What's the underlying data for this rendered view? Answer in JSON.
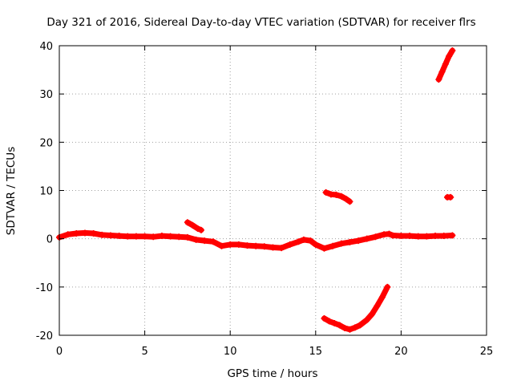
{
  "chart_data": {
    "type": "scatter",
    "title": "Day 321 of 2016, Sidereal Day-to-day VTEC variation (SDTVAR) for receiver flrs",
    "xlabel": "GPS time / hours",
    "ylabel": "SDTVAR / TECUs",
    "xlim": [
      0,
      25
    ],
    "ylim": [
      -20,
      40
    ],
    "xticks": [
      0,
      5,
      10,
      15,
      20,
      25
    ],
    "yticks": [
      -20,
      -10,
      0,
      10,
      20,
      30,
      40
    ],
    "grid": true,
    "legend": "none",
    "color": "#ff0000",
    "series": [
      {
        "name": "main-trace",
        "points": [
          [
            0.0,
            0.3
          ],
          [
            0.5,
            0.9
          ],
          [
            1.0,
            1.1
          ],
          [
            1.5,
            1.2
          ],
          [
            2.0,
            1.1
          ],
          [
            2.5,
            0.8
          ],
          [
            3.0,
            0.7
          ],
          [
            3.5,
            0.6
          ],
          [
            4.0,
            0.5
          ],
          [
            4.5,
            0.5
          ],
          [
            5.0,
            0.5
          ],
          [
            5.5,
            0.4
          ],
          [
            6.0,
            0.6
          ],
          [
            6.5,
            0.5
          ],
          [
            7.0,
            0.4
          ],
          [
            7.5,
            0.3
          ],
          [
            8.0,
            -0.2
          ],
          [
            8.5,
            -0.4
          ],
          [
            9.0,
            -0.6
          ],
          [
            9.5,
            -1.5
          ],
          [
            10.0,
            -1.2
          ],
          [
            10.5,
            -1.2
          ],
          [
            11.0,
            -1.4
          ],
          [
            11.5,
            -1.5
          ],
          [
            12.0,
            -1.6
          ],
          [
            12.5,
            -1.8
          ],
          [
            13.0,
            -1.9
          ],
          [
            13.5,
            -1.2
          ],
          [
            14.0,
            -0.6
          ],
          [
            14.3,
            -0.2
          ],
          [
            14.7,
            -0.4
          ],
          [
            15.0,
            -1.2
          ],
          [
            15.5,
            -2.0
          ],
          [
            16.0,
            -1.5
          ],
          [
            16.5,
            -1.0
          ],
          [
            17.0,
            -0.7
          ],
          [
            17.5,
            -0.4
          ],
          [
            18.0,
            0.0
          ],
          [
            18.5,
            0.4
          ],
          [
            19.0,
            0.9
          ],
          [
            19.3,
            1.0
          ],
          [
            19.5,
            0.7
          ],
          [
            20.0,
            0.6
          ],
          [
            20.5,
            0.6
          ],
          [
            21.0,
            0.5
          ],
          [
            21.5,
            0.5
          ],
          [
            22.0,
            0.6
          ],
          [
            22.5,
            0.6
          ],
          [
            23.0,
            0.7
          ]
        ]
      },
      {
        "name": "segment-7.5h",
        "points": [
          [
            7.5,
            3.4
          ],
          [
            7.8,
            2.8
          ],
          [
            8.1,
            2.1
          ],
          [
            8.3,
            1.8
          ]
        ]
      },
      {
        "name": "segment-15.5h-upper",
        "points": [
          [
            15.6,
            9.6
          ],
          [
            15.9,
            9.2
          ],
          [
            16.2,
            9.1
          ],
          [
            16.5,
            8.8
          ],
          [
            16.8,
            8.2
          ],
          [
            17.0,
            7.7
          ]
        ]
      },
      {
        "name": "segment-15.5h-lower",
        "points": [
          [
            15.5,
            -16.5
          ],
          [
            15.8,
            -17.1
          ],
          [
            16.1,
            -17.5
          ],
          [
            16.4,
            -17.9
          ],
          [
            16.7,
            -18.5
          ],
          [
            17.0,
            -18.8
          ],
          [
            17.3,
            -18.4
          ],
          [
            17.6,
            -17.9
          ],
          [
            18.0,
            -16.8
          ],
          [
            18.3,
            -15.6
          ],
          [
            18.6,
            -13.9
          ],
          [
            18.9,
            -12.1
          ],
          [
            19.2,
            -10.0
          ]
        ]
      },
      {
        "name": "segment-22h-rising",
        "points": [
          [
            22.2,
            33.0
          ],
          [
            22.4,
            34.6
          ],
          [
            22.6,
            36.2
          ],
          [
            22.8,
            37.8
          ],
          [
            23.0,
            39.0
          ]
        ]
      },
      {
        "name": "segment-22.8h-point",
        "points": [
          [
            22.7,
            8.6
          ],
          [
            22.9,
            8.6
          ]
        ]
      }
    ]
  }
}
